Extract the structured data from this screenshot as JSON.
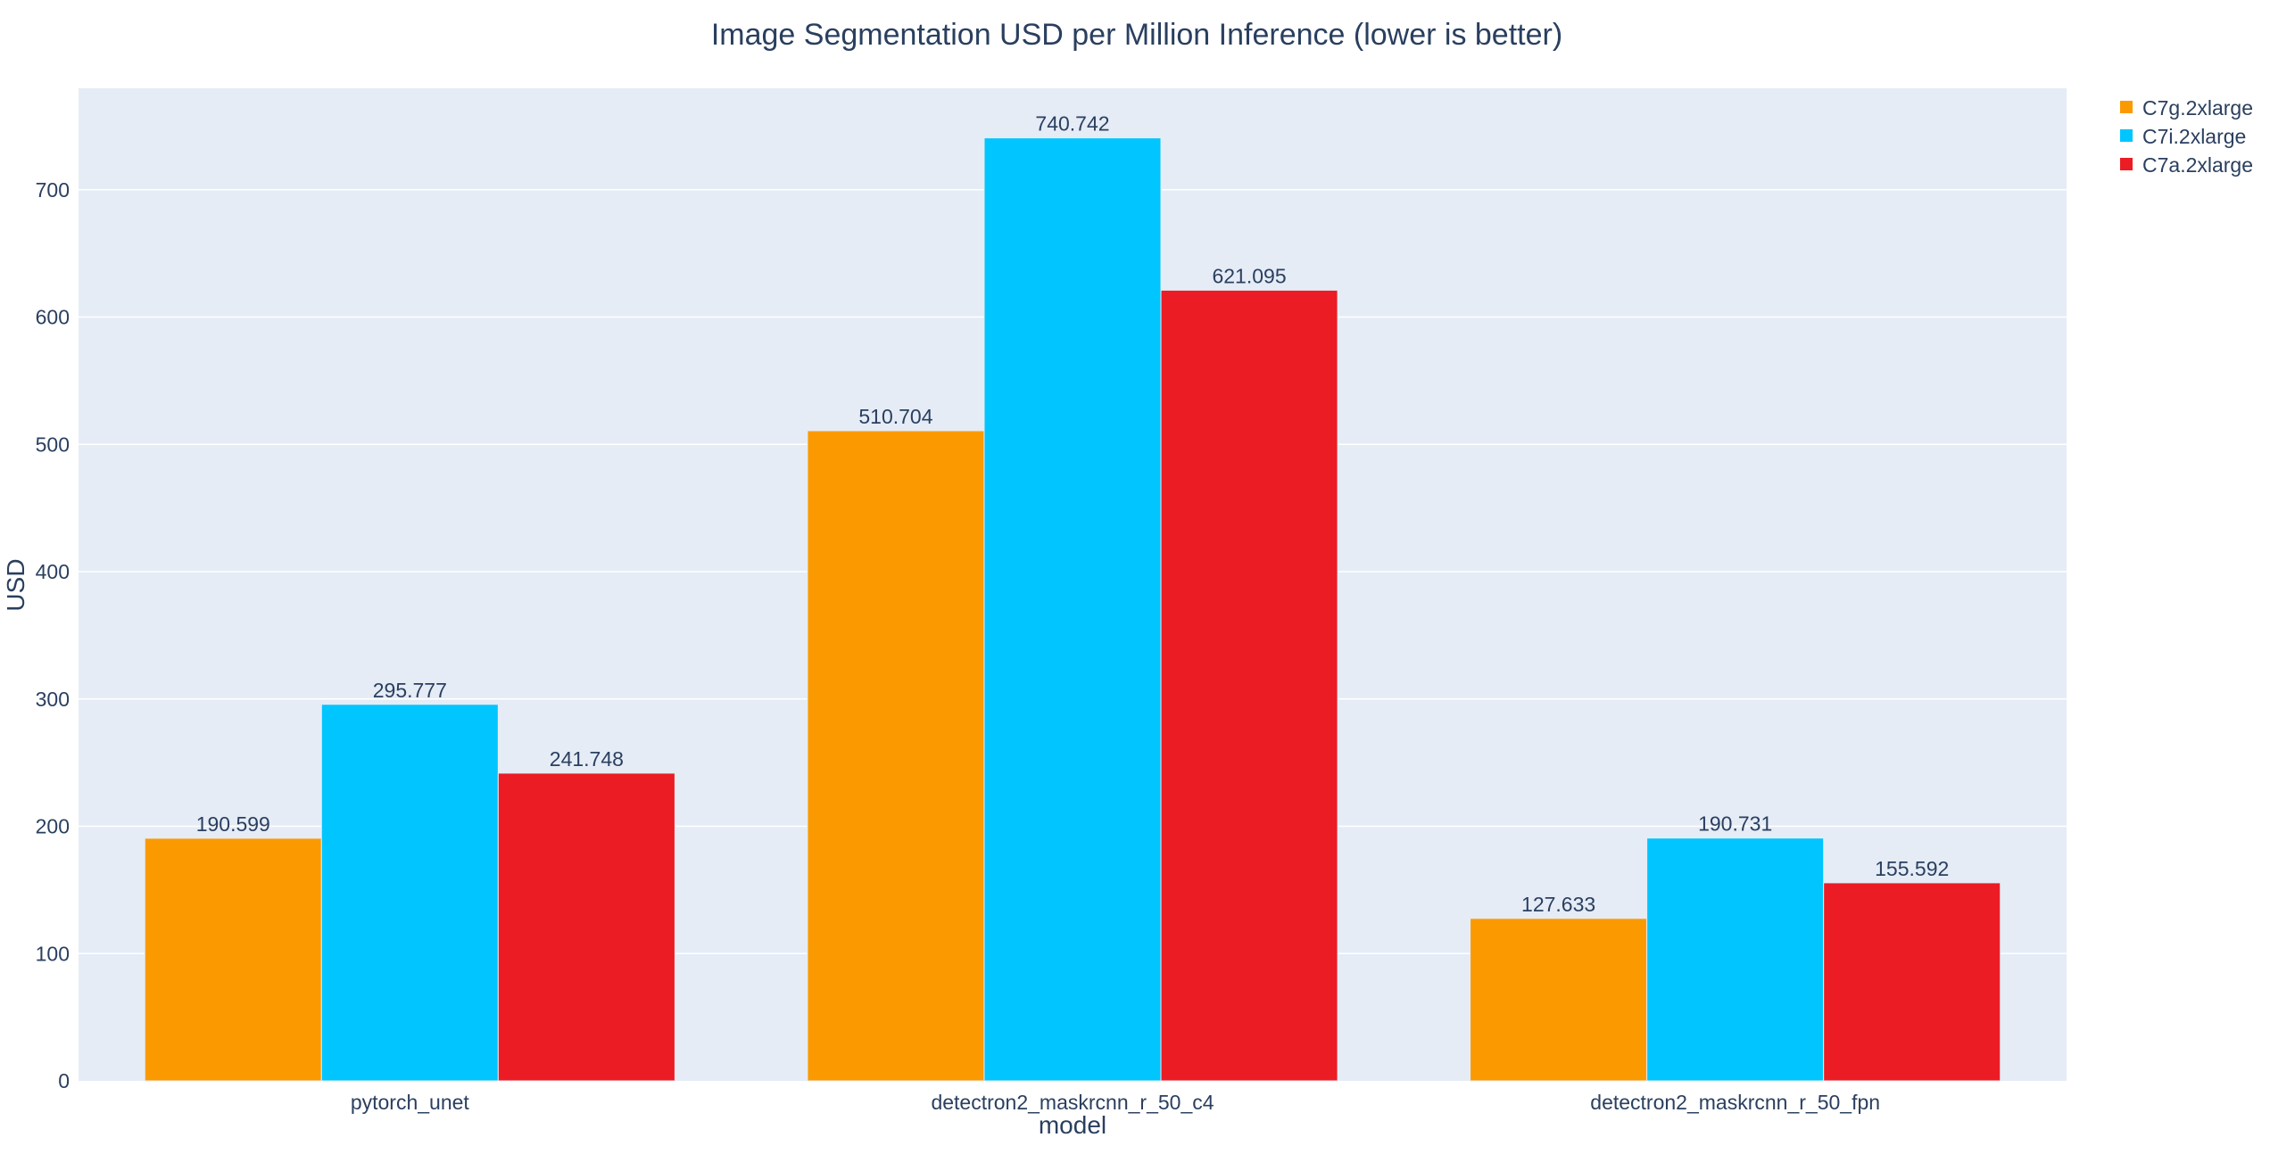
{
  "chart_data": {
    "type": "bar",
    "title": "Image Segmentation USD per Million Inference (lower is better)",
    "xlabel": "model",
    "ylabel": "USD",
    "categories": [
      "pytorch_unet",
      "detectron2_maskrcnn_r_50_c4",
      "detectron2_maskrcnn_r_50_fpn"
    ],
    "series": [
      {
        "name": "C7g.2xlarge",
        "color": "#fb9a00",
        "values": [
          190.599,
          510.704,
          127.633
        ],
        "labels": [
          "190.599",
          "510.704",
          "127.633"
        ]
      },
      {
        "name": "C7i.2xlarge",
        "color": "#00c5ff",
        "values": [
          295.777,
          740.742,
          190.731
        ],
        "labels": [
          "295.777",
          "740.742",
          "190.731"
        ]
      },
      {
        "name": "C7a.2xlarge",
        "color": "#ec1c24",
        "values": [
          241.748,
          621.095,
          155.592
        ],
        "labels": [
          "241.748",
          "621.095",
          "155.592"
        ]
      }
    ],
    "ylim": [
      0,
      779.7
    ],
    "yticks": [
      0,
      100,
      200,
      300,
      400,
      500,
      600,
      700
    ],
    "ytick_labels": [
      "0",
      "100",
      "200",
      "300",
      "400",
      "500",
      "600",
      "700"
    ],
    "grid": true,
    "legend_position": "top-right",
    "plot_background": "#e5ecf6",
    "grid_color": "#ffffff"
  }
}
